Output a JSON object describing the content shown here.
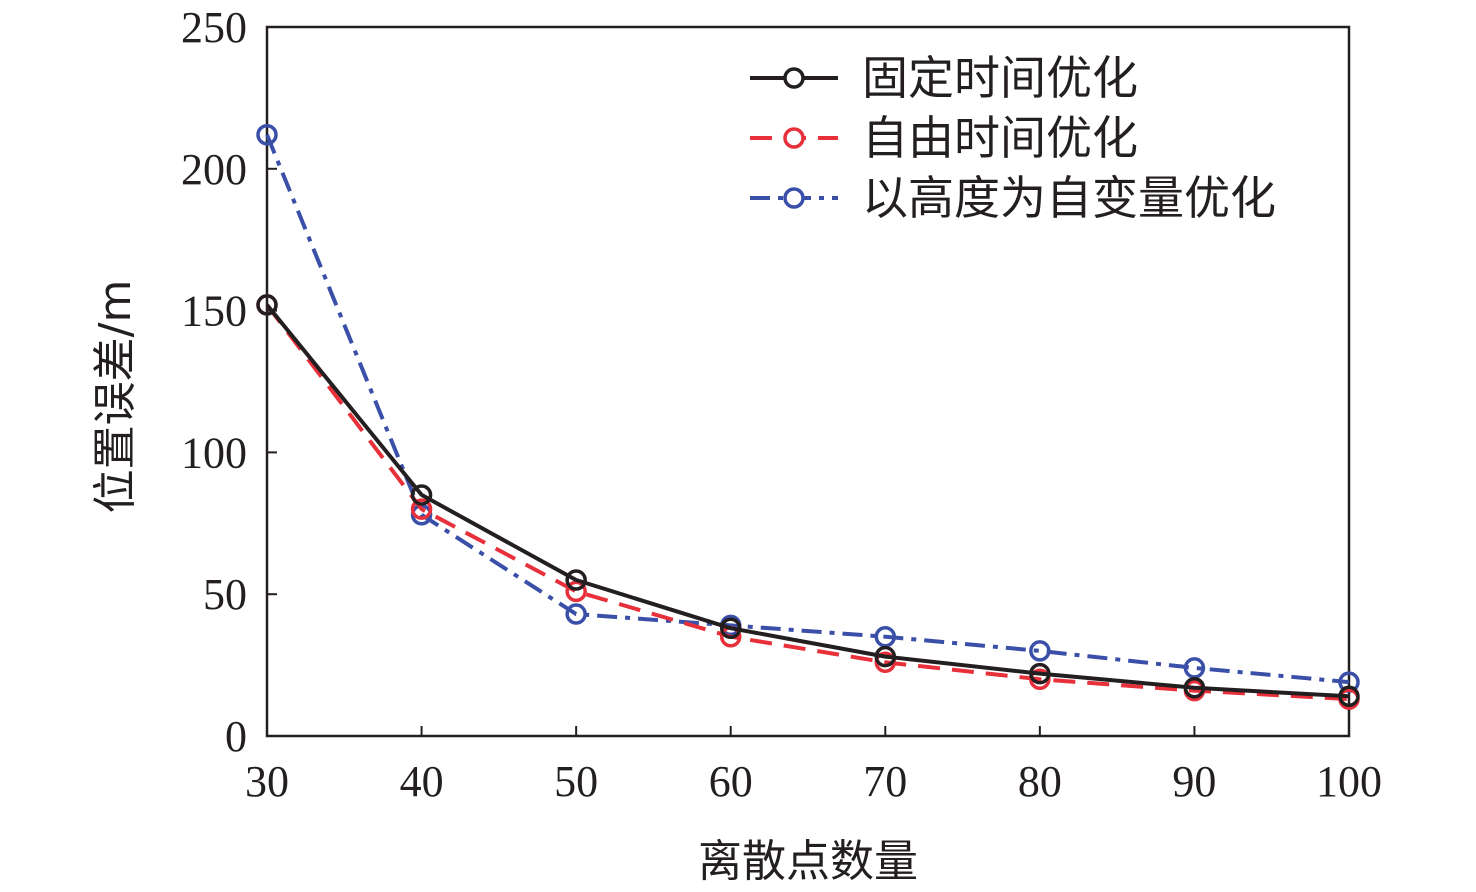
{
  "chart_data": {
    "type": "line",
    "xlabel": "离散点数量",
    "ylabel": "位置误差/m",
    "x": [
      30,
      40,
      50,
      60,
      70,
      80,
      90,
      100
    ],
    "xticks": [
      30,
      40,
      50,
      60,
      70,
      80,
      90,
      100
    ],
    "yticks": [
      0,
      50,
      100,
      150,
      200,
      250
    ],
    "xlim": [
      30,
      100
    ],
    "ylim": [
      0,
      250
    ],
    "grid": false,
    "legend_position": "top-right",
    "series": [
      {
        "name": "固定时间优化",
        "values": [
          152,
          85,
          55,
          38,
          28,
          22,
          17,
          14
        ],
        "color": "#231f20",
        "line_style": "solid",
        "marker": "open-circle"
      },
      {
        "name": "自由时间优化",
        "values": [
          152,
          80,
          51,
          35,
          26,
          20,
          16,
          13
        ],
        "color": "#e8303a",
        "line_style": "dashed",
        "marker": "open-circle"
      },
      {
        "name": "以高度为自变量优化",
        "values": [
          212,
          78,
          43,
          39,
          35,
          30,
          24,
          19
        ],
        "color": "#3a4fa8",
        "line_style": "dash-dot",
        "marker": "open-circle"
      }
    ]
  }
}
